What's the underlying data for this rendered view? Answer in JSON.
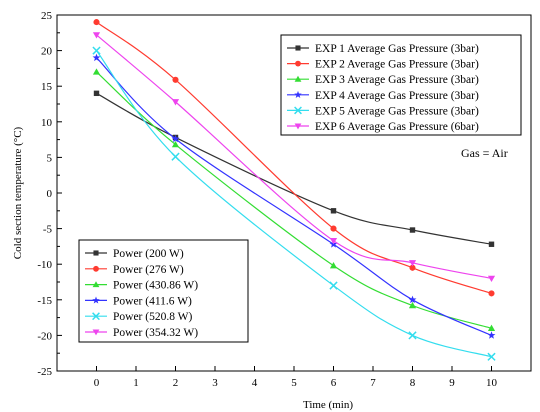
{
  "chart_data": {
    "type": "line",
    "title": "",
    "xlabel": "Time (min)",
    "ylabel": "Cold section temperature (°C)",
    "xlim": [
      -1,
      11
    ],
    "ylim": [
      -25,
      25
    ],
    "xticks": [
      "0",
      "1",
      "2",
      "3",
      "4",
      "5",
      "6",
      "7",
      "8",
      "9",
      "10"
    ],
    "yticks": [
      "-25",
      "-20",
      "-15",
      "-10",
      "-5",
      "0",
      "5",
      "10",
      "15",
      "20",
      "25"
    ],
    "grid": false,
    "series": [
      {
        "exp_label": "EXP 1  Average  Gas Pressure (3bar)",
        "power_label": "Power (200 W)",
        "color": "#333333",
        "marker": "square",
        "x": [
          0,
          2,
          6,
          8,
          10
        ],
        "values": [
          14,
          7.8,
          -2.5,
          -5.2,
          -7.2
        ]
      },
      {
        "exp_label": "EXP 2  Average  Gas Pressure (3bar)",
        "power_label": "Power (276 W)",
        "color": "#ff3b30",
        "marker": "circle",
        "x": [
          0,
          2,
          6,
          8,
          10
        ],
        "values": [
          24,
          15.9,
          -5,
          -10.5,
          -14.1
        ]
      },
      {
        "exp_label": "EXP 3  Average  Gas Pressure (3bar)",
        "power_label": "Power (430.86 W)",
        "color": "#33dd33",
        "marker": "triangle-up",
        "x": [
          0,
          2,
          6,
          8,
          10
        ],
        "values": [
          17,
          6.8,
          -10.2,
          -15.8,
          -19
        ]
      },
      {
        "exp_label": "EXP 4  Average  Gas Pressure (3bar)",
        "power_label": "Power (411.6 W)",
        "color": "#3333ff",
        "marker": "star",
        "x": [
          0,
          2,
          6,
          8,
          10
        ],
        "values": [
          19,
          7.6,
          -7.2,
          -15,
          -20
        ]
      },
      {
        "exp_label": "EXP 5  Average  Gas Pressure (3bar)",
        "power_label": "Power (520.8 W)",
        "color": "#33ddee",
        "marker": "x",
        "x": [
          0,
          2,
          6,
          8,
          10
        ],
        "values": [
          20,
          5.1,
          -13,
          -20,
          -23
        ]
      },
      {
        "exp_label": "EXP 6  Average  Gas Pressure (6bar)",
        "power_label": "Power (354.32 W)",
        "color": "#ee44ee",
        "marker": "triangle-down",
        "x": [
          0,
          2,
          6,
          8,
          10
        ],
        "values": [
          22.2,
          12.8,
          -6.7,
          -9.8,
          -12
        ]
      }
    ],
    "annotation": "Gas = Air",
    "legends": [
      "top-right",
      "bottom-left"
    ]
  }
}
